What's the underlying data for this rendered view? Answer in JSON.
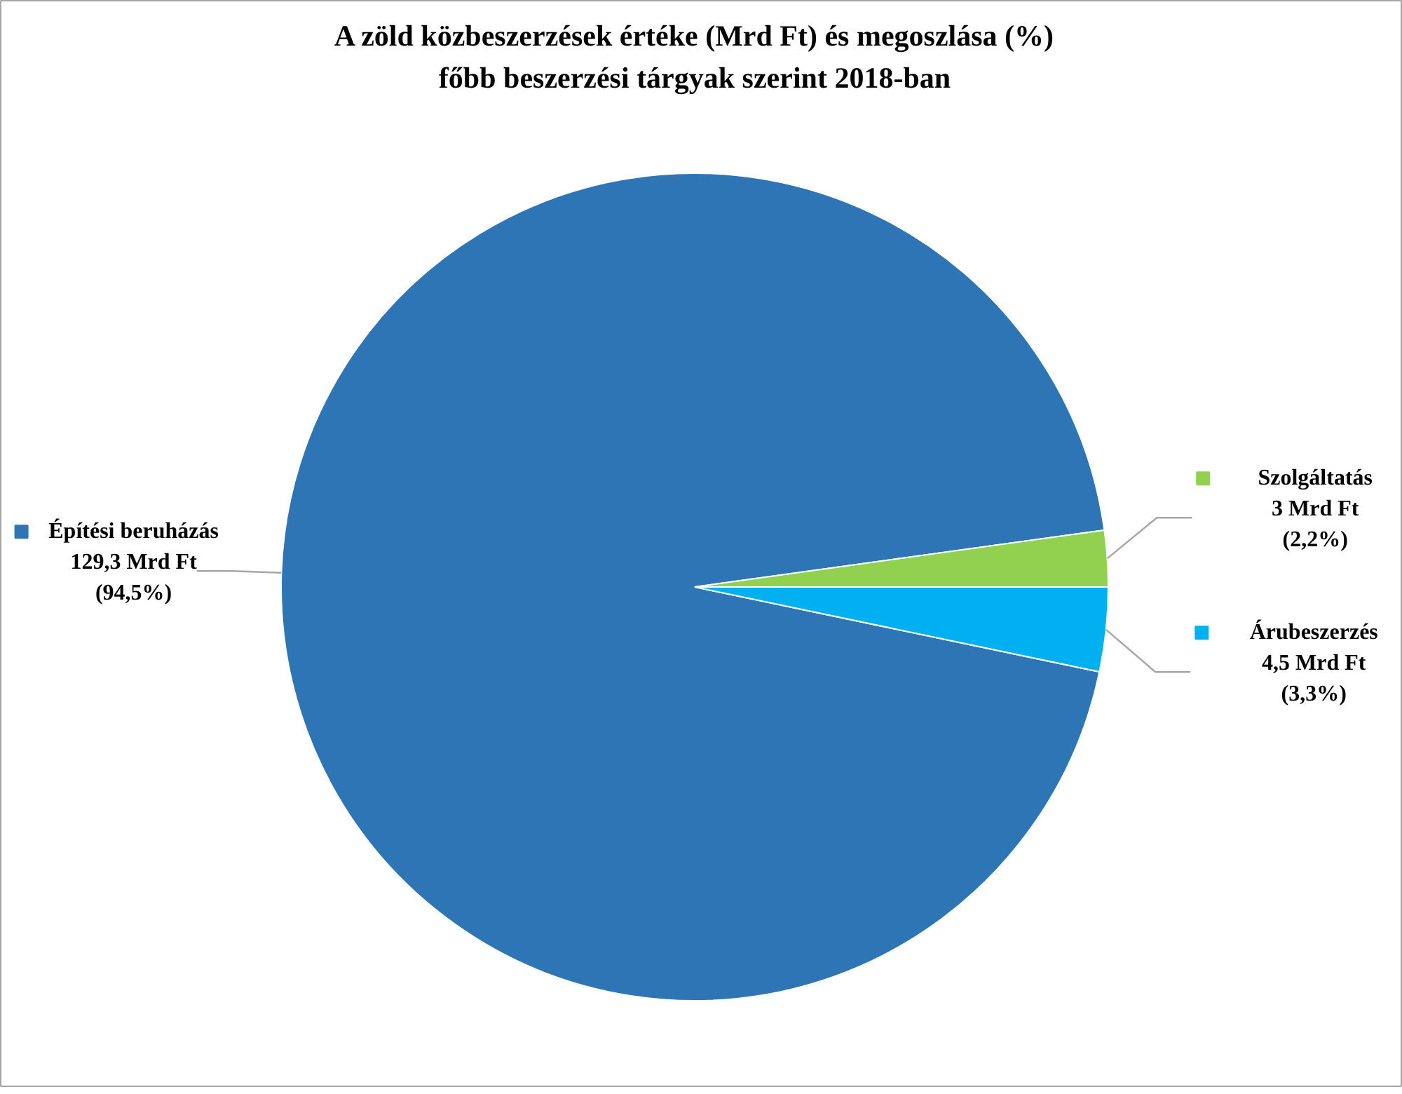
{
  "chart_data": {
    "type": "pie",
    "title": "A zöld közbeszerzések értéke (Mrd Ft) és megoszlása (%)\nfőbb beszerzési tárgyak szerint 2018-ban",
    "categories": [
      "Építési beruházás",
      "Árubeszerzés",
      "Szolgáltatás"
    ],
    "values": [
      129.3,
      4.5,
      3
    ],
    "legend": "right",
    "colors": [
      "#2e75b6",
      "#00b0f0",
      "#92d050"
    ],
    "value_labels": [
      "129,3 Mrd Ft (94,5%)",
      "4,5 Mrd Ft (3,3%)",
      "3 Mrd Ft (2,2%)"
    ]
  }
}
